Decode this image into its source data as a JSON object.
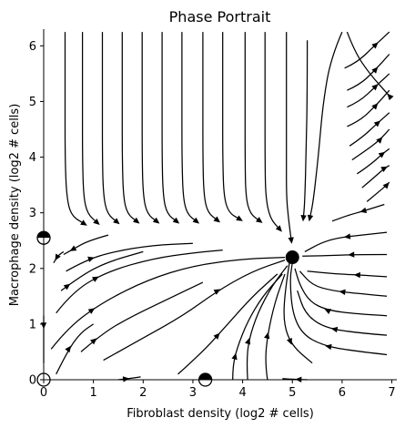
{
  "chart_data": {
    "type": "streamplot",
    "title": "Phase Portrait",
    "xlabel": "Fibroblast density (log2 # cells)",
    "ylabel": "Macrophage density (log2 # cells)",
    "xlim": [
      0,
      7.1
    ],
    "ylim": [
      0,
      6.3
    ],
    "xticks": [
      0,
      1,
      2,
      3,
      4,
      5,
      6,
      7
    ],
    "yticks": [
      0,
      1,
      2,
      3,
      4,
      5,
      6
    ],
    "grid": false,
    "fixed_points": [
      {
        "x": 5.0,
        "y": 2.2,
        "stability": "stable"
      },
      {
        "x": 0.0,
        "y": 2.55,
        "stability": "semi-stable"
      },
      {
        "x": 3.25,
        "y": 0.0,
        "stability": "semi-stable"
      },
      {
        "x": 0.0,
        "y": 0.0,
        "stability": "unstable"
      }
    ],
    "streamlines": [
      {
        "points": [
          [
            0.43,
            6.25
          ],
          [
            0.43,
            5.0
          ],
          [
            0.43,
            4.0
          ],
          [
            0.46,
            3.3
          ],
          [
            0.55,
            2.95
          ],
          [
            0.82,
            2.8
          ]
        ],
        "arrow": 1
      },
      {
        "points": [
          [
            0.78,
            6.25
          ],
          [
            0.78,
            5.0
          ],
          [
            0.78,
            4.0
          ],
          [
            0.8,
            3.3
          ],
          [
            0.88,
            2.98
          ],
          [
            1.08,
            2.82
          ]
        ],
        "arrow": 1
      },
      {
        "points": [
          [
            1.18,
            6.25
          ],
          [
            1.18,
            5.0
          ],
          [
            1.18,
            4.0
          ],
          [
            1.2,
            3.3
          ],
          [
            1.28,
            2.98
          ],
          [
            1.48,
            2.83
          ]
        ],
        "arrow": 1
      },
      {
        "points": [
          [
            1.58,
            6.25
          ],
          [
            1.58,
            5.0
          ],
          [
            1.58,
            4.0
          ],
          [
            1.6,
            3.3
          ],
          [
            1.68,
            2.98
          ],
          [
            1.88,
            2.84
          ]
        ],
        "arrow": 1
      },
      {
        "points": [
          [
            1.98,
            6.25
          ],
          [
            1.98,
            5.0
          ],
          [
            1.98,
            4.0
          ],
          [
            2.0,
            3.3
          ],
          [
            2.08,
            2.98
          ],
          [
            2.28,
            2.84
          ]
        ],
        "arrow": 1
      },
      {
        "points": [
          [
            2.38,
            6.25
          ],
          [
            2.38,
            5.0
          ],
          [
            2.38,
            4.0
          ],
          [
            2.4,
            3.3
          ],
          [
            2.48,
            2.98
          ],
          [
            2.68,
            2.84
          ]
        ],
        "arrow": 1
      },
      {
        "points": [
          [
            2.78,
            6.25
          ],
          [
            2.78,
            5.0
          ],
          [
            2.78,
            4.0
          ],
          [
            2.8,
            3.3
          ],
          [
            2.88,
            2.98
          ],
          [
            3.08,
            2.84
          ]
        ],
        "arrow": 1
      },
      {
        "points": [
          [
            3.2,
            6.25
          ],
          [
            3.2,
            5.0
          ],
          [
            3.2,
            4.0
          ],
          [
            3.22,
            3.3
          ],
          [
            3.3,
            3.0
          ],
          [
            3.5,
            2.86
          ]
        ],
        "arrow": 1
      },
      {
        "points": [
          [
            3.6,
            6.25
          ],
          [
            3.6,
            5.0
          ],
          [
            3.6,
            4.0
          ],
          [
            3.62,
            3.3
          ],
          [
            3.72,
            3.0
          ],
          [
            3.95,
            2.88
          ]
        ],
        "arrow": 1
      },
      {
        "points": [
          [
            4.05,
            6.25
          ],
          [
            4.05,
            5.0
          ],
          [
            4.05,
            4.0
          ],
          [
            4.06,
            3.3
          ],
          [
            4.15,
            2.98
          ],
          [
            4.35,
            2.85
          ]
        ],
        "arrow": 1
      },
      {
        "points": [
          [
            4.45,
            6.25
          ],
          [
            4.45,
            5.0
          ],
          [
            4.45,
            4.0
          ],
          [
            4.46,
            3.3
          ],
          [
            4.55,
            2.9
          ],
          [
            4.75,
            2.7
          ]
        ],
        "arrow": 1
      },
      {
        "points": [
          [
            4.88,
            6.25
          ],
          [
            4.88,
            5.0
          ],
          [
            4.88,
            4.0
          ],
          [
            4.88,
            3.3
          ],
          [
            4.92,
            2.9
          ],
          [
            4.98,
            2.5
          ]
        ],
        "arrow": 1
      },
      {
        "points": [
          [
            5.3,
            6.1
          ],
          [
            5.3,
            5.2
          ],
          [
            5.28,
            4.2
          ],
          [
            5.25,
            3.2
          ],
          [
            5.22,
            2.9
          ]
        ],
        "arrow": 1
      },
      {
        "points": [
          [
            6.0,
            6.25
          ],
          [
            5.78,
            5.8
          ],
          [
            5.62,
            5.0
          ],
          [
            5.52,
            4.0
          ],
          [
            5.42,
            3.2
          ],
          [
            5.35,
            2.9
          ]
        ],
        "arrow": 1
      },
      {
        "points": [
          [
            6.1,
            6.25
          ],
          [
            6.25,
            5.9
          ],
          [
            6.55,
            5.5
          ],
          [
            6.95,
            5.1
          ]
        ],
        "arrow": -1
      },
      {
        "points": [
          [
            6.05,
            5.6
          ],
          [
            6.3,
            5.7
          ],
          [
            6.65,
            6.0
          ],
          [
            6.95,
            6.25
          ]
        ],
        "arrow": 0.7
      },
      {
        "points": [
          [
            6.1,
            5.2
          ],
          [
            6.35,
            5.3
          ],
          [
            6.65,
            5.55
          ],
          [
            6.95,
            5.85
          ]
        ],
        "arrow": 0.7
      },
      {
        "points": [
          [
            6.1,
            4.9
          ],
          [
            6.35,
            5.0
          ],
          [
            6.65,
            5.25
          ],
          [
            6.95,
            5.5
          ]
        ],
        "arrow": 0.7
      },
      {
        "points": [
          [
            6.1,
            4.55
          ],
          [
            6.35,
            4.65
          ],
          [
            6.65,
            4.9
          ],
          [
            6.95,
            5.2
          ]
        ],
        "arrow": 0.7
      },
      {
        "points": [
          [
            6.15,
            4.2
          ],
          [
            6.4,
            4.35
          ],
          [
            6.7,
            4.6
          ],
          [
            6.95,
            4.8
          ]
        ],
        "arrow": 0.7
      },
      {
        "points": [
          [
            6.2,
            3.95
          ],
          [
            6.45,
            4.1
          ],
          [
            6.75,
            4.3
          ],
          [
            6.95,
            4.5
          ]
        ],
        "arrow": 0.7
      },
      {
        "points": [
          [
            6.3,
            3.7
          ],
          [
            6.55,
            3.85
          ],
          [
            6.8,
            4.05
          ],
          [
            6.95,
            4.15
          ]
        ],
        "arrow": 0.7
      },
      {
        "points": [
          [
            6.4,
            3.45
          ],
          [
            6.6,
            3.6
          ],
          [
            6.85,
            3.8
          ],
          [
            6.95,
            3.85
          ]
        ],
        "arrow": 0.7
      },
      {
        "points": [
          [
            6.5,
            3.2
          ],
          [
            6.7,
            3.35
          ],
          [
            6.9,
            3.5
          ],
          [
            6.95,
            3.55
          ]
        ],
        "arrow": 0.7
      },
      {
        "points": [
          [
            6.85,
            3.15
          ],
          [
            6.5,
            3.05
          ],
          [
            6.1,
            2.95
          ],
          [
            5.8,
            2.85
          ]
        ],
        "arrow": 0.4
      },
      {
        "points": [
          [
            6.9,
            2.65
          ],
          [
            6.4,
            2.6
          ],
          [
            5.9,
            2.55
          ],
          [
            5.55,
            2.45
          ],
          [
            5.25,
            2.3
          ]
        ],
        "arrow": 0.4
      },
      {
        "points": [
          [
            6.9,
            2.25
          ],
          [
            6.3,
            2.25
          ],
          [
            5.7,
            2.23
          ],
          [
            5.2,
            2.22
          ]
        ],
        "arrow": 0.4
      },
      {
        "points": [
          [
            6.9,
            1.85
          ],
          [
            6.4,
            1.88
          ],
          [
            5.9,
            1.9
          ],
          [
            5.3,
            1.95
          ]
        ],
        "arrow": 0.4
      },
      {
        "points": [
          [
            6.9,
            1.5
          ],
          [
            6.3,
            1.55
          ],
          [
            5.8,
            1.6
          ],
          [
            5.4,
            1.7
          ],
          [
            5.15,
            1.95
          ]
        ],
        "arrow": 0.4
      },
      {
        "points": [
          [
            6.9,
            1.15
          ],
          [
            6.3,
            1.18
          ],
          [
            5.7,
            1.25
          ],
          [
            5.35,
            1.4
          ],
          [
            5.15,
            1.7
          ],
          [
            5.05,
            2.0
          ]
        ],
        "arrow": 0.4
      },
      {
        "points": [
          [
            6.9,
            0.8
          ],
          [
            6.2,
            0.85
          ],
          [
            5.6,
            0.95
          ],
          [
            5.25,
            1.2
          ],
          [
            5.1,
            1.6
          ]
        ],
        "arrow": 0.4
      },
      {
        "points": [
          [
            6.9,
            0.45
          ],
          [
            6.2,
            0.52
          ],
          [
            5.6,
            0.62
          ],
          [
            5.2,
            0.82
          ],
          [
            5.0,
            1.2
          ],
          [
            4.95,
            1.8
          ],
          [
            5.0,
            2.1
          ]
        ],
        "arrow": 0.3
      },
      {
        "points": [
          [
            4.95,
            2.15
          ],
          [
            4.85,
            1.6
          ],
          [
            4.82,
            1.0
          ],
          [
            5.0,
            0.6
          ],
          [
            5.4,
            0.3
          ]
        ],
        "arrow": 0.7
      },
      {
        "points": [
          [
            4.5,
            0.0
          ],
          [
            4.45,
            0.3
          ],
          [
            4.5,
            0.8
          ],
          [
            4.65,
            1.4
          ],
          [
            4.85,
            1.9
          ]
        ],
        "arrow": 0.5
      },
      {
        "points": [
          [
            4.1,
            0.0
          ],
          [
            4.08,
            0.3
          ],
          [
            4.12,
            0.7
          ],
          [
            4.3,
            1.2
          ],
          [
            4.6,
            1.7
          ],
          [
            4.9,
            2.05
          ]
        ],
        "arrow": 0.4
      },
      {
        "points": [
          [
            3.8,
            0.0
          ],
          [
            3.8,
            0.25
          ],
          [
            3.9,
            0.6
          ],
          [
            4.1,
            1.05
          ],
          [
            4.4,
            1.5
          ],
          [
            4.8,
            1.9
          ]
        ],
        "arrow": 0.3
      },
      {
        "points": [
          [
            2.7,
            0.1
          ],
          [
            3.2,
            0.5
          ],
          [
            3.7,
            1.0
          ],
          [
            4.2,
            1.5
          ],
          [
            4.7,
            1.9
          ]
        ],
        "arrow": 0.4
      },
      {
        "points": [
          [
            1.2,
            0.35
          ],
          [
            2.0,
            0.75
          ],
          [
            2.8,
            1.15
          ],
          [
            3.5,
            1.6
          ],
          [
            4.2,
            1.95
          ],
          [
            4.85,
            2.15
          ]
        ],
        "arrow": 0.6
      },
      {
        "points": [
          [
            0.15,
            0.55
          ],
          [
            0.5,
            0.95
          ],
          [
            1.2,
            1.4
          ],
          [
            2.1,
            1.8
          ],
          [
            3.0,
            2.05
          ],
          [
            4.0,
            2.17
          ],
          [
            4.85,
            2.2
          ]
        ],
        "arrow": 0.28
      },
      {
        "points": [
          [
            0.25,
            1.2
          ],
          [
            0.6,
            1.6
          ],
          [
            1.3,
            1.95
          ],
          [
            2.2,
            2.18
          ],
          [
            3.0,
            2.28
          ],
          [
            3.6,
            2.33
          ]
        ],
        "arrow": 0.33
      },
      {
        "points": [
          [
            0.0,
            1.15
          ],
          [
            0.0,
            0.7
          ],
          [
            0.0,
            0.3
          ]
        ],
        "arrow": 0.2
      },
      {
        "points": [
          [
            0.25,
            0.1
          ],
          [
            0.5,
            0.55
          ],
          [
            0.75,
            0.85
          ],
          [
            1.0,
            1.0
          ]
        ],
        "arrow": 0.35
      },
      {
        "points": [
          [
            0.75,
            0.5
          ],
          [
            1.2,
            0.85
          ],
          [
            1.8,
            1.15
          ],
          [
            2.5,
            1.45
          ],
          [
            3.2,
            1.75
          ]
        ],
        "arrow": 0.15
      },
      {
        "points": [
          [
            0.35,
            1.6
          ],
          [
            0.8,
            1.9
          ],
          [
            1.3,
            2.12
          ],
          [
            2.0,
            2.3
          ]
        ],
        "arrow": 0.1
      },
      {
        "points": [
          [
            0.45,
            1.95
          ],
          [
            0.85,
            2.15
          ],
          [
            1.4,
            2.3
          ],
          [
            2.2,
            2.42
          ],
          [
            3.0,
            2.45
          ]
        ],
        "arrow": 0.3
      },
      {
        "points": [
          [
            0.4,
            2.3
          ],
          [
            0.3,
            2.25
          ],
          [
            0.2,
            2.1
          ]
        ],
        "arrow": 0.7
      },
      {
        "points": [
          [
            1.3,
            2.6
          ],
          [
            0.9,
            2.5
          ],
          [
            0.6,
            2.35
          ],
          [
            0.4,
            2.25
          ]
        ],
        "arrow": 0.7
      },
      {
        "points": [
          [
            1.5,
            0.0
          ],
          [
            1.7,
            0.02
          ],
          [
            1.95,
            0.05
          ]
        ],
        "arrow": 0.4
      },
      {
        "points": [
          [
            5.3,
            0.0
          ],
          [
            5.0,
            0.01
          ],
          [
            4.8,
            0.02
          ]
        ],
        "arrow": 0.3
      }
    ]
  }
}
